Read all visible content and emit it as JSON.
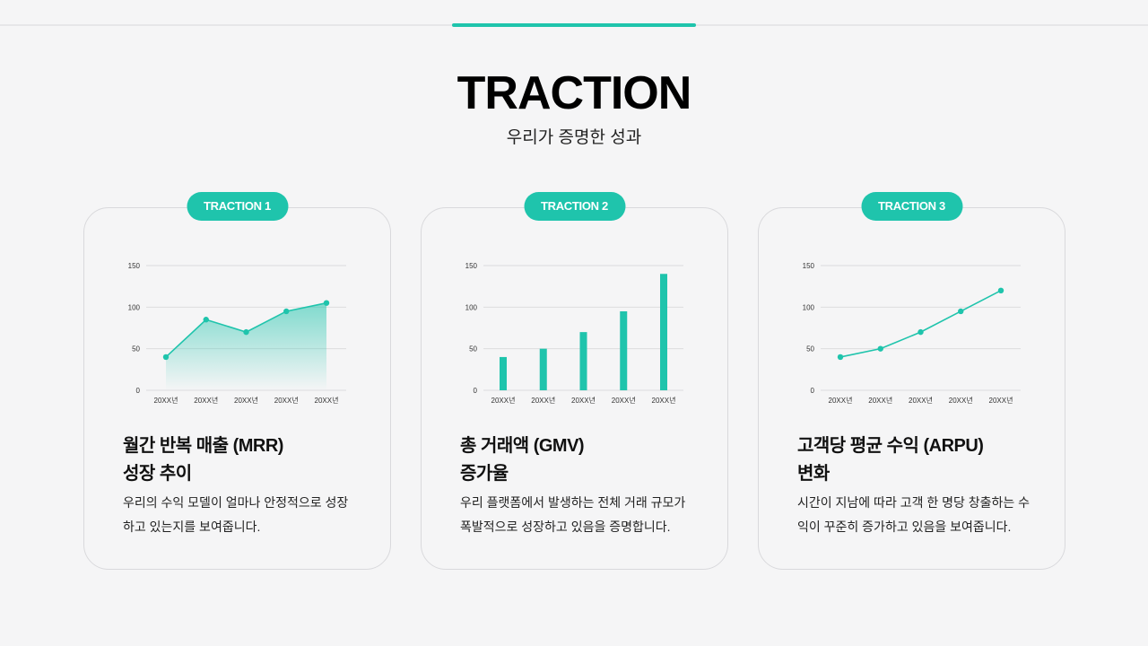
{
  "header": {
    "title": "TRACTION",
    "subtitle": "우리가 증명한 성과"
  },
  "colors": {
    "accent": "#1fc4ac"
  },
  "cards": [
    {
      "badge": "TRACTION 1",
      "title_line1": "월간 반복 매출 (MRR)",
      "title_line2": "성장 추이",
      "desc_line1": "우리의 수익 모델이 얼마나 안정적으로 성장",
      "desc_line2": "하고 있는지를 보여줍니다."
    },
    {
      "badge": "TRACTION 2",
      "title_line1": "총 거래액 (GMV)",
      "title_line2": "증가율",
      "desc_line1": "우리 플랫폼에서 발생하는 전체 거래 규모가",
      "desc_line2": "폭발적으로 성장하고 있음을 증명합니다."
    },
    {
      "badge": "TRACTION 3",
      "title_line1": "고객당 평균 수익 (ARPU)",
      "title_line2": "변화",
      "desc_line1": "시간이 지남에 따라 고객 한 명당 창출하는 수",
      "desc_line2": "익이 꾸준히 증가하고 있음을 보여줍니다."
    }
  ],
  "chart_data": [
    {
      "type": "area",
      "categories": [
        "20XX년",
        "20XX년",
        "20XX년",
        "20XX년",
        "20XX년"
      ],
      "values": [
        40,
        85,
        70,
        95,
        105
      ],
      "ylim": [
        0,
        150
      ],
      "yticks": [
        0,
        50,
        100,
        150
      ],
      "grid": true
    },
    {
      "type": "bar",
      "categories": [
        "20XX년",
        "20XX년",
        "20XX년",
        "20XX년",
        "20XX년"
      ],
      "values": [
        40,
        50,
        70,
        95,
        140
      ],
      "ylim": [
        0,
        150
      ],
      "yticks": [
        0,
        50,
        100,
        150
      ],
      "grid": true
    },
    {
      "type": "line",
      "categories": [
        "20XX년",
        "20XX년",
        "20XX년",
        "20XX년",
        "20XX년"
      ],
      "values": [
        40,
        50,
        70,
        95,
        120
      ],
      "ylim": [
        0,
        150
      ],
      "yticks": [
        0,
        50,
        100,
        150
      ],
      "grid": true
    }
  ]
}
